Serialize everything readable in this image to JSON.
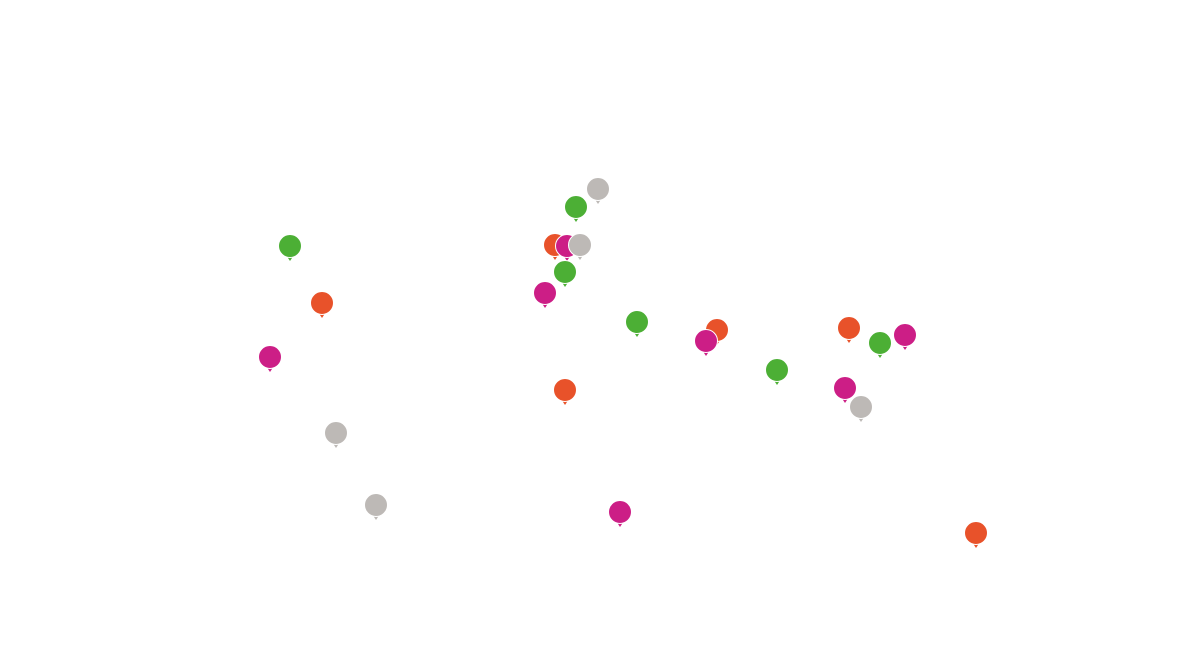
{
  "pins": [
    {
      "color": "#4caf35"
    },
    {
      "color": "#e8522a"
    },
    {
      "color": "#cc1e86"
    },
    {
      "color": "#bdb9b6"
    },
    {
      "color": "#bdb9b6"
    },
    {
      "color": "#bdb9b6"
    },
    {
      "color": "#4caf35"
    },
    {
      "color": "#e8522a"
    },
    {
      "color": "#cc1e86"
    },
    {
      "color": "#bdb9b6"
    },
    {
      "color": "#4caf35"
    },
    {
      "color": "#cc1e86"
    },
    {
      "color": "#4caf35"
    },
    {
      "color": "#e8522a"
    },
    {
      "color": "#cc1e86"
    },
    {
      "color": "#e8522a"
    },
    {
      "color": "#cc1e86"
    },
    {
      "color": "#4caf35"
    },
    {
      "color": "#e8522a"
    },
    {
      "color": "#4caf35"
    },
    {
      "color": "#cc1e86"
    },
    {
      "color": "#cc1e86"
    },
    {
      "color": "#bdb9b6"
    },
    {
      "color": "#e8522a"
    }
  ]
}
